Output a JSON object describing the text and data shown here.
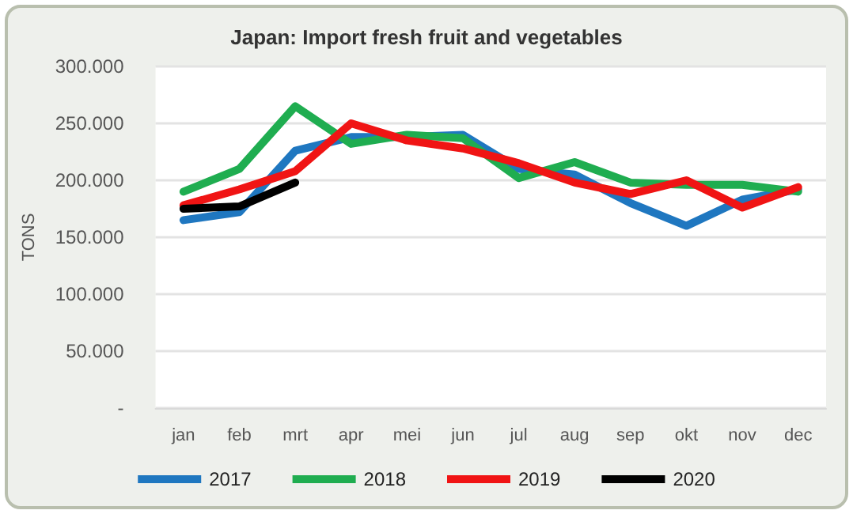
{
  "chart_data": {
    "type": "line",
    "title": "Japan: Import fresh fruit and vegetables",
    "ylabel": "TONS",
    "categories": [
      "jan",
      "feb",
      "mrt",
      "apr",
      "mei",
      "jun",
      "jul",
      "aug",
      "sep",
      "okt",
      "nov",
      "dec"
    ],
    "series": [
      {
        "name": "2017",
        "color": "#1f77c0",
        "values": [
          165000,
          172000,
          226000,
          238000,
          238000,
          240000,
          210000,
          205000,
          180000,
          160000,
          183000,
          192000
        ]
      },
      {
        "name": "2018",
        "color": "#1fad50",
        "values": [
          190000,
          210000,
          265000,
          232000,
          240000,
          237000,
          202000,
          216000,
          198000,
          196000,
          196000,
          190000
        ]
      },
      {
        "name": "2019",
        "color": "#f01414",
        "values": [
          178000,
          192000,
          208000,
          250000,
          235000,
          228000,
          215000,
          198000,
          188000,
          200000,
          176000,
          194000
        ]
      },
      {
        "name": "2020",
        "color": "#000000",
        "values": [
          175000,
          177000,
          198000,
          null,
          null,
          null,
          null,
          null,
          null,
          null,
          null,
          null
        ]
      }
    ],
    "ylim": [
      0,
      300000
    ],
    "yticks": [
      {
        "value": 0,
        "label": "-"
      },
      {
        "value": 50000,
        "label": "50.000"
      },
      {
        "value": 100000,
        "label": "100.000"
      },
      {
        "value": 150000,
        "label": "150.000"
      },
      {
        "value": 200000,
        "label": "200.000"
      },
      {
        "value": 250000,
        "label": "250.000"
      },
      {
        "value": 300000,
        "label": "300.000"
      }
    ],
    "grid": "y",
    "legend": "bottom",
    "marker": "none",
    "line_style": "solid"
  }
}
